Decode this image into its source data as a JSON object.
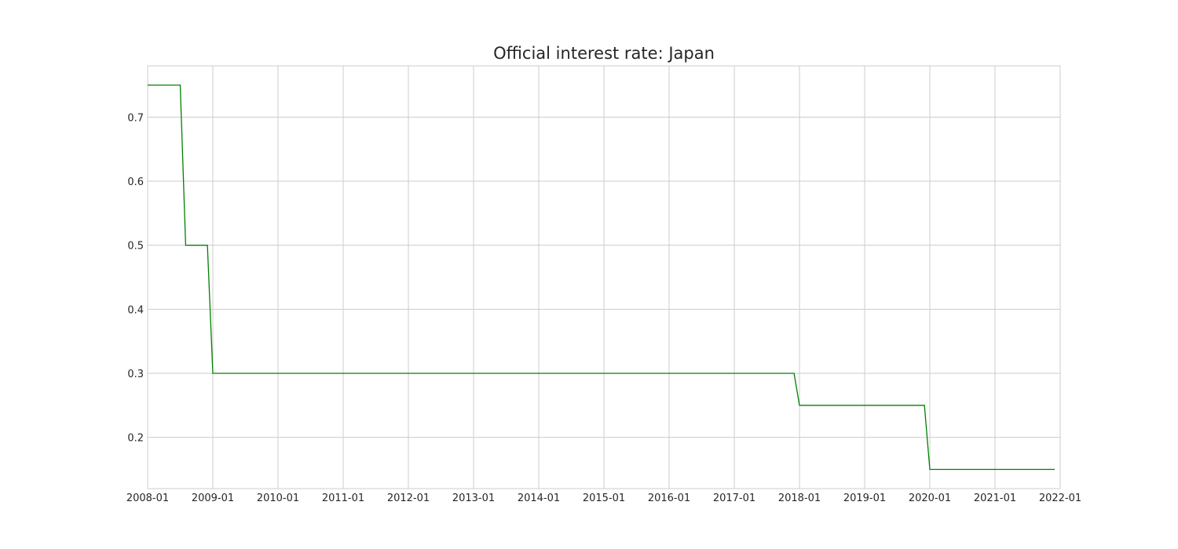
{
  "chart_data": {
    "type": "line",
    "title": "Official interest rate: Japan",
    "xlabel": "",
    "ylabel": "",
    "x_tick_labels": [
      "2008-01",
      "2009-01",
      "2010-01",
      "2011-01",
      "2012-01",
      "2013-01",
      "2014-01",
      "2015-01",
      "2016-01",
      "2017-01",
      "2018-01",
      "2019-01",
      "2020-01",
      "2021-01",
      "2022-01"
    ],
    "y_ticks": [
      0.2,
      0.3,
      0.4,
      0.5,
      0.6,
      0.7
    ],
    "y_tick_labels": [
      "0.2",
      "0.3",
      "0.4",
      "0.5",
      "0.6",
      "0.7"
    ],
    "xlim": [
      "2008-01",
      "2022-01"
    ],
    "ylim": [
      0.12,
      0.78
    ],
    "grid": true,
    "series": [
      {
        "color": "#008000",
        "points": [
          {
            "x": "2008-01",
            "y": 0.75
          },
          {
            "x": "2008-07",
            "y": 0.75
          },
          {
            "x": "2008-08",
            "y": 0.5
          },
          {
            "x": "2008-12",
            "y": 0.5
          },
          {
            "x": "2009-01",
            "y": 0.3
          },
          {
            "x": "2017-12",
            "y": 0.3
          },
          {
            "x": "2018-01",
            "y": 0.25
          },
          {
            "x": "2019-12",
            "y": 0.25
          },
          {
            "x": "2020-01",
            "y": 0.15
          },
          {
            "x": "2021-12",
            "y": 0.15
          }
        ]
      }
    ]
  }
}
